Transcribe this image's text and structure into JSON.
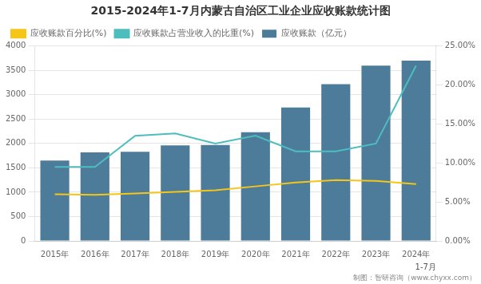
{
  "chart_data": {
    "type": "bar",
    "title": "2015-2024年1-7月内蒙古自治区工业企业应收账款统计图",
    "categories": [
      "2015年",
      "2016年",
      "2017年",
      "2018年",
      "2019年",
      "2020年",
      "2021年",
      "2022年",
      "2023年",
      "2024年"
    ],
    "series": [
      {
        "name": "应收账款（亿元）",
        "type": "bar",
        "color": "#4d7c9b",
        "values": [
          1650,
          1820,
          1830,
          1960,
          1970,
          2230,
          2740,
          3220,
          3600,
          3700
        ]
      },
      {
        "name": "应收账款百分比(%)",
        "type": "line",
        "color": "#f5c518",
        "axis": "y2",
        "values": [
          6.0,
          5.9,
          6.1,
          6.3,
          6.5,
          7.0,
          7.5,
          7.8,
          7.7,
          7.3
        ]
      },
      {
        "name": "应收账款占营业收入的比重(%)",
        "type": "line",
        "color": "#4dbdbd",
        "axis": "y2",
        "values": [
          9.5,
          9.5,
          13.5,
          13.8,
          12.5,
          13.5,
          11.5,
          11.5,
          12.5,
          22.5
        ]
      }
    ],
    "ylim": [
      0,
      4000
    ],
    "yticks": [
      0,
      500,
      1000,
      1500,
      2000,
      2500,
      3000,
      3500,
      4000
    ],
    "y2lim": [
      0,
      25
    ],
    "y2ticks": [
      {
        "value": 0,
        "label": "0.00%"
      },
      {
        "value": 5,
        "label": "5.00%"
      },
      {
        "value": 10,
        "label": "10.00%"
      },
      {
        "value": 15,
        "label": "15.00%"
      },
      {
        "value": 20,
        "label": "20.00%"
      },
      {
        "value": 25,
        "label": "25.00%"
      }
    ],
    "grid": true,
    "legend": "upper left",
    "annotations": [
      "1-7月",
      "制图：智研咨询（www.chyxx.com）"
    ]
  }
}
